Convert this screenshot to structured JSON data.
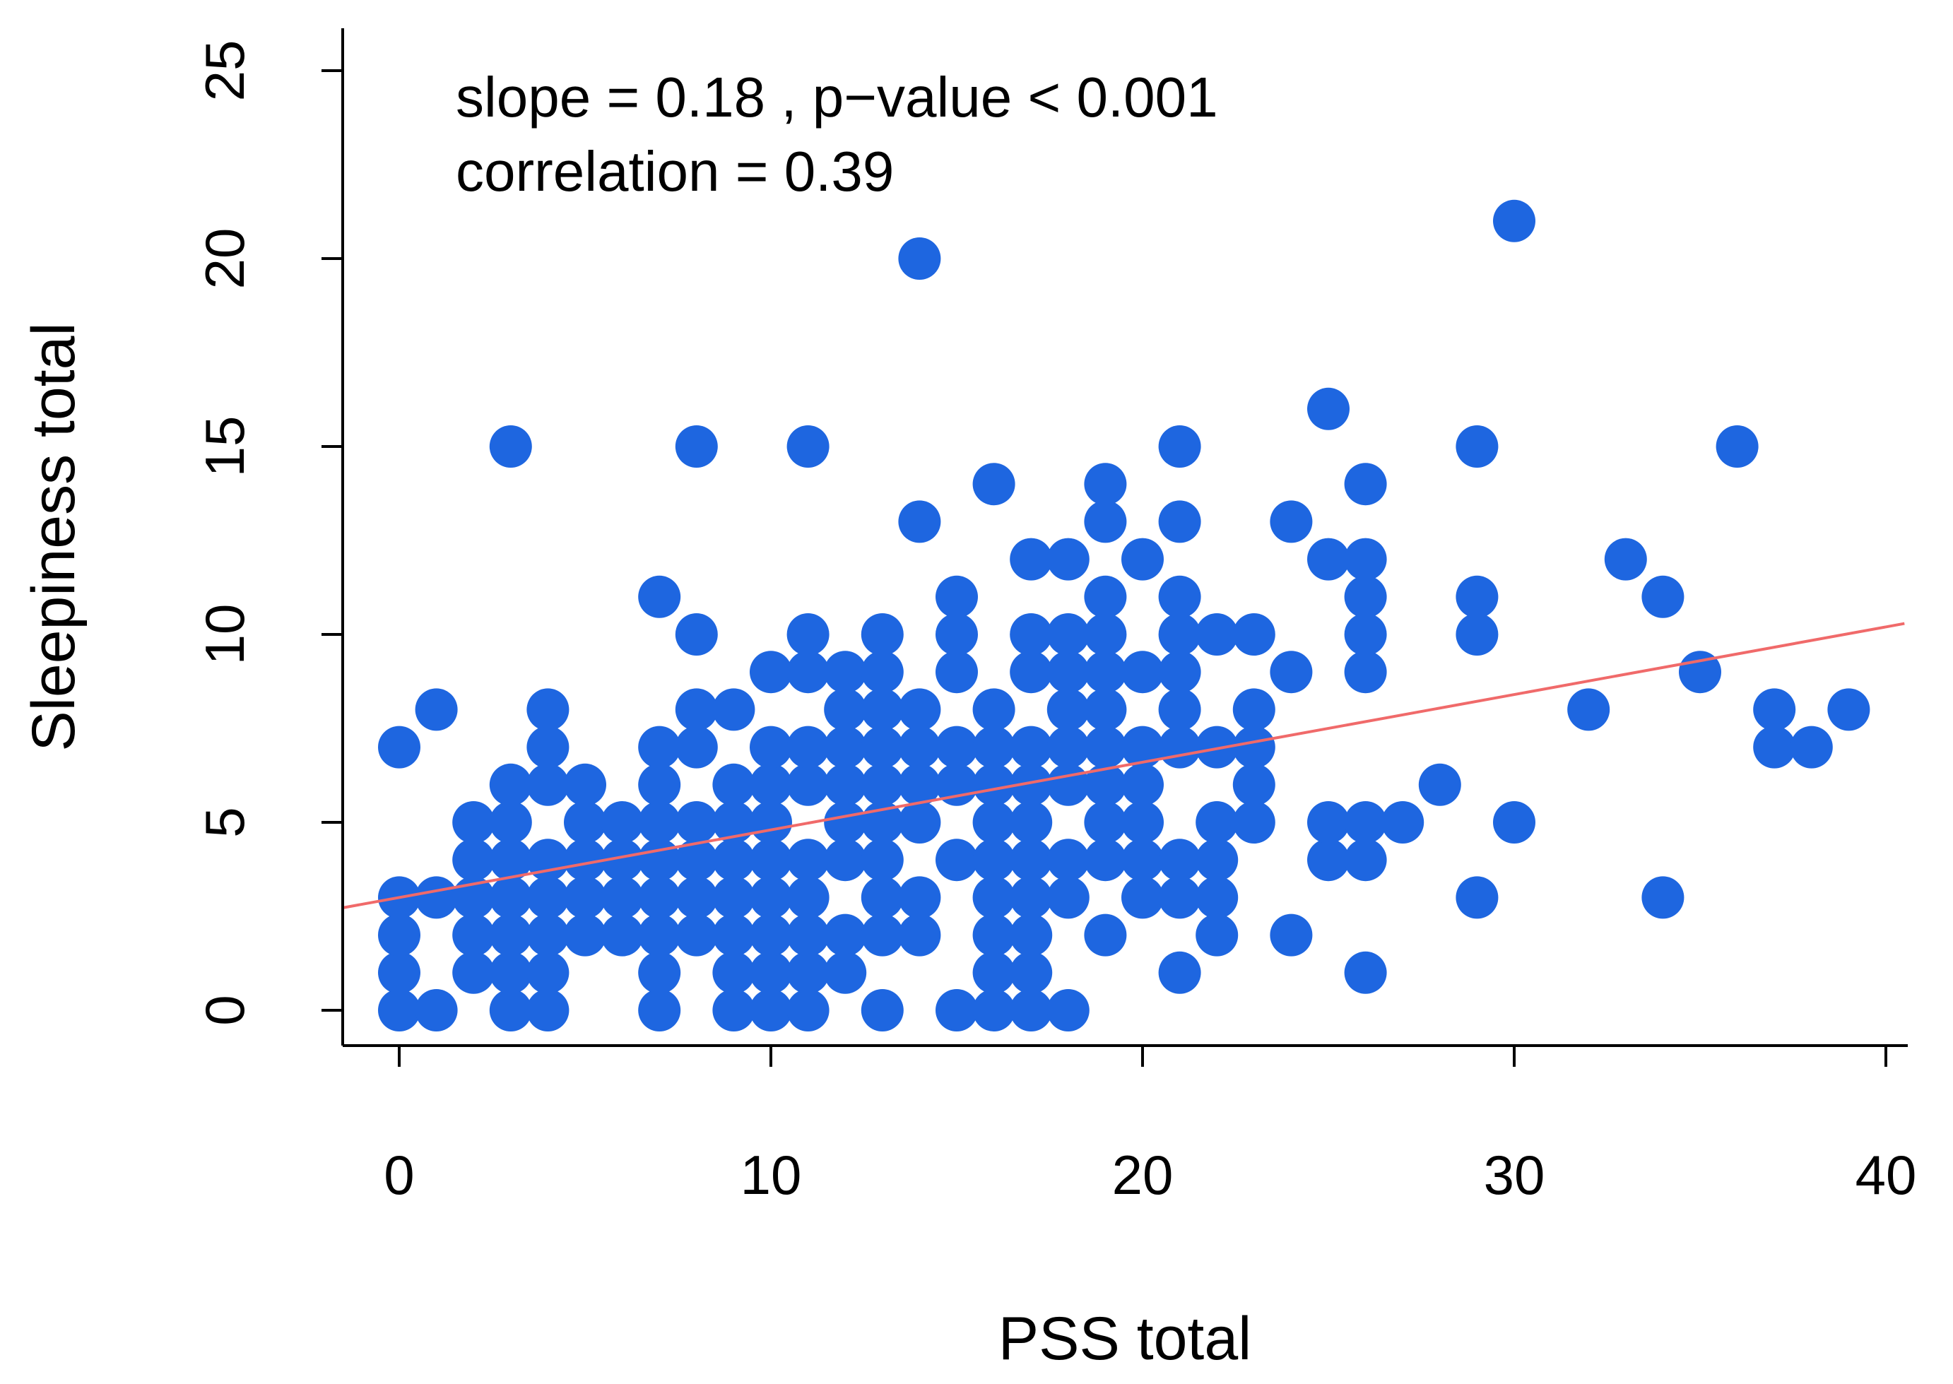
{
  "chart_data": {
    "type": "scatter",
    "xlabel": "PSS total",
    "ylabel": "Sleepiness total",
    "xlim": [
      -1.5,
      40.5
    ],
    "ylim": [
      -1,
      26
    ],
    "xticks": [
      0,
      10,
      20,
      30,
      40
    ],
    "yticks": [
      0,
      5,
      10,
      15,
      20,
      25
    ],
    "grid": false,
    "point_color": "#1E66E0",
    "line_color": "#F06A6A",
    "annotations": [
      "slope = 0.18 , p−value < 0.001",
      "correlation = 0.39"
    ],
    "regression": {
      "slope": 0.18,
      "intercept": 3.0
    },
    "points": [
      [
        0,
        0
      ],
      [
        0,
        1
      ],
      [
        0,
        2
      ],
      [
        0,
        3
      ],
      [
        0,
        7
      ],
      [
        1,
        0
      ],
      [
        1,
        3
      ],
      [
        1,
        8
      ],
      [
        2,
        1
      ],
      [
        2,
        2
      ],
      [
        2,
        3
      ],
      [
        2,
        4
      ],
      [
        2,
        5
      ],
      [
        3,
        0
      ],
      [
        3,
        1
      ],
      [
        3,
        2
      ],
      [
        3,
        3
      ],
      [
        3,
        4
      ],
      [
        3,
        5
      ],
      [
        3,
        6
      ],
      [
        3,
        15
      ],
      [
        4,
        0
      ],
      [
        4,
        1
      ],
      [
        4,
        2
      ],
      [
        4,
        3
      ],
      [
        4,
        4
      ],
      [
        4,
        6
      ],
      [
        4,
        7
      ],
      [
        4,
        8
      ],
      [
        5,
        2
      ],
      [
        5,
        3
      ],
      [
        5,
        4
      ],
      [
        5,
        5
      ],
      [
        5,
        6
      ],
      [
        6,
        2
      ],
      [
        6,
        3
      ],
      [
        6,
        4
      ],
      [
        6,
        5
      ],
      [
        7,
        0
      ],
      [
        7,
        1
      ],
      [
        7,
        2
      ],
      [
        7,
        3
      ],
      [
        7,
        4
      ],
      [
        7,
        5
      ],
      [
        7,
        6
      ],
      [
        7,
        7
      ],
      [
        7,
        11
      ],
      [
        8,
        2
      ],
      [
        8,
        3
      ],
      [
        8,
        4
      ],
      [
        8,
        5
      ],
      [
        8,
        7
      ],
      [
        8,
        8
      ],
      [
        8,
        10
      ],
      [
        8,
        15
      ],
      [
        9,
        0
      ],
      [
        9,
        1
      ],
      [
        9,
        2
      ],
      [
        9,
        3
      ],
      [
        9,
        4
      ],
      [
        9,
        5
      ],
      [
        9,
        6
      ],
      [
        9,
        8
      ],
      [
        10,
        0
      ],
      [
        10,
        1
      ],
      [
        10,
        2
      ],
      [
        10,
        3
      ],
      [
        10,
        4
      ],
      [
        10,
        5
      ],
      [
        10,
        6
      ],
      [
        10,
        7
      ],
      [
        10,
        9
      ],
      [
        11,
        0
      ],
      [
        11,
        1
      ],
      [
        11,
        2
      ],
      [
        11,
        3
      ],
      [
        11,
        4
      ],
      [
        11,
        6
      ],
      [
        11,
        7
      ],
      [
        11,
        9
      ],
      [
        11,
        10
      ],
      [
        11,
        15
      ],
      [
        12,
        1
      ],
      [
        12,
        2
      ],
      [
        12,
        4
      ],
      [
        12,
        5
      ],
      [
        12,
        6
      ],
      [
        12,
        7
      ],
      [
        12,
        8
      ],
      [
        12,
        9
      ],
      [
        13,
        0
      ],
      [
        13,
        2
      ],
      [
        13,
        3
      ],
      [
        13,
        4
      ],
      [
        13,
        5
      ],
      [
        13,
        6
      ],
      [
        13,
        7
      ],
      [
        13,
        8
      ],
      [
        13,
        9
      ],
      [
        13,
        10
      ],
      [
        14,
        2
      ],
      [
        14,
        3
      ],
      [
        14,
        5
      ],
      [
        14,
        6
      ],
      [
        14,
        7
      ],
      [
        14,
        8
      ],
      [
        14,
        13
      ],
      [
        14,
        20
      ],
      [
        15,
        0
      ],
      [
        15,
        4
      ],
      [
        15,
        6
      ],
      [
        15,
        7
      ],
      [
        15,
        9
      ],
      [
        15,
        10
      ],
      [
        15,
        11
      ],
      [
        16,
        0
      ],
      [
        16,
        1
      ],
      [
        16,
        2
      ],
      [
        16,
        3
      ],
      [
        16,
        4
      ],
      [
        16,
        5
      ],
      [
        16,
        6
      ],
      [
        16,
        7
      ],
      [
        16,
        8
      ],
      [
        16,
        14
      ],
      [
        17,
        0
      ],
      [
        17,
        1
      ],
      [
        17,
        2
      ],
      [
        17,
        3
      ],
      [
        17,
        4
      ],
      [
        17,
        5
      ],
      [
        17,
        6
      ],
      [
        17,
        7
      ],
      [
        17,
        9
      ],
      [
        17,
        10
      ],
      [
        17,
        12
      ],
      [
        18,
        0
      ],
      [
        18,
        3
      ],
      [
        18,
        4
      ],
      [
        18,
        6
      ],
      [
        18,
        7
      ],
      [
        18,
        8
      ],
      [
        18,
        9
      ],
      [
        18,
        10
      ],
      [
        18,
        12
      ],
      [
        19,
        2
      ],
      [
        19,
        4
      ],
      [
        19,
        5
      ],
      [
        19,
        6
      ],
      [
        19,
        7
      ],
      [
        19,
        8
      ],
      [
        19,
        9
      ],
      [
        19,
        10
      ],
      [
        19,
        11
      ],
      [
        19,
        13
      ],
      [
        19,
        14
      ],
      [
        20,
        3
      ],
      [
        20,
        4
      ],
      [
        20,
        5
      ],
      [
        20,
        6
      ],
      [
        20,
        7
      ],
      [
        20,
        9
      ],
      [
        20,
        12
      ],
      [
        21,
        1
      ],
      [
        21,
        3
      ],
      [
        21,
        4
      ],
      [
        21,
        7
      ],
      [
        21,
        8
      ],
      [
        21,
        9
      ],
      [
        21,
        10
      ],
      [
        21,
        11
      ],
      [
        21,
        13
      ],
      [
        21,
        15
      ],
      [
        22,
        2
      ],
      [
        22,
        3
      ],
      [
        22,
        4
      ],
      [
        22,
        5
      ],
      [
        22,
        7
      ],
      [
        22,
        10
      ],
      [
        23,
        5
      ],
      [
        23,
        6
      ],
      [
        23,
        7
      ],
      [
        23,
        8
      ],
      [
        23,
        10
      ],
      [
        24,
        2
      ],
      [
        24,
        9
      ],
      [
        24,
        13
      ],
      [
        25,
        4
      ],
      [
        25,
        5
      ],
      [
        25,
        12
      ],
      [
        25,
        16
      ],
      [
        26,
        1
      ],
      [
        26,
        4
      ],
      [
        26,
        5
      ],
      [
        26,
        9
      ],
      [
        26,
        10
      ],
      [
        26,
        11
      ],
      [
        26,
        12
      ],
      [
        26,
        14
      ],
      [
        27,
        5
      ],
      [
        28,
        6
      ],
      [
        29,
        3
      ],
      [
        29,
        10
      ],
      [
        29,
        11
      ],
      [
        29,
        15
      ],
      [
        30,
        5
      ],
      [
        30,
        21
      ],
      [
        32,
        8
      ],
      [
        33,
        12
      ],
      [
        34,
        3
      ],
      [
        34,
        11
      ],
      [
        35,
        9
      ],
      [
        36,
        15
      ],
      [
        37,
        7
      ],
      [
        37,
        8
      ],
      [
        38,
        7
      ],
      [
        39,
        8
      ]
    ]
  }
}
